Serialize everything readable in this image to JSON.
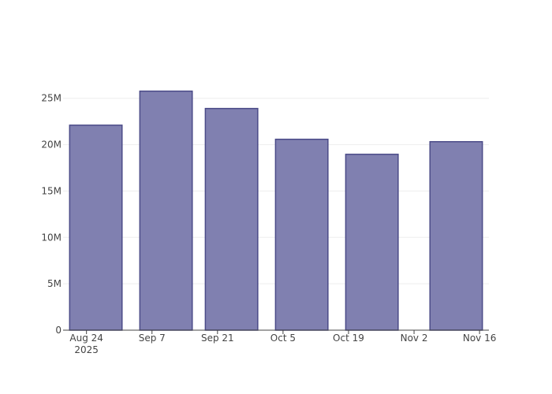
{
  "chart_data": {
    "type": "bar",
    "x": [
      "2025-08-26",
      "2025-09-10",
      "2025-09-24",
      "2025-10-09",
      "2025-10-24",
      "2025-11-11"
    ],
    "values": [
      22100000,
      25770000,
      23900000,
      20580000,
      18960000,
      20320000
    ],
    "color": "#8080b0",
    "line_color": "#4b4b88",
    "xlim": [
      "2025-08-19",
      "2025-11-18"
    ],
    "xticks": [
      {
        "value": "2025-08-24",
        "label": "Aug 24\n2025"
      },
      {
        "value": "2025-09-07",
        "label": "Sep 7"
      },
      {
        "value": "2025-09-21",
        "label": "Sep 21"
      },
      {
        "value": "2025-10-05",
        "label": "Oct 5"
      },
      {
        "value": "2025-10-19",
        "label": "Oct 19"
      },
      {
        "value": "2025-11-02",
        "label": "Nov 2"
      },
      {
        "value": "2025-11-16",
        "label": "Nov 16"
      }
    ],
    "ylim": [
      0,
      27100000
    ],
    "yticks": [
      0,
      {
        "value": 5000000,
        "label": "5M"
      },
      {
        "value": 10000000,
        "label": "10M"
      },
      {
        "value": 15000000,
        "label": "15M"
      },
      {
        "value": 20000000,
        "label": "20M"
      },
      {
        "value": 25000000,
        "label": "25M"
      }
    ],
    "grid": true
  }
}
